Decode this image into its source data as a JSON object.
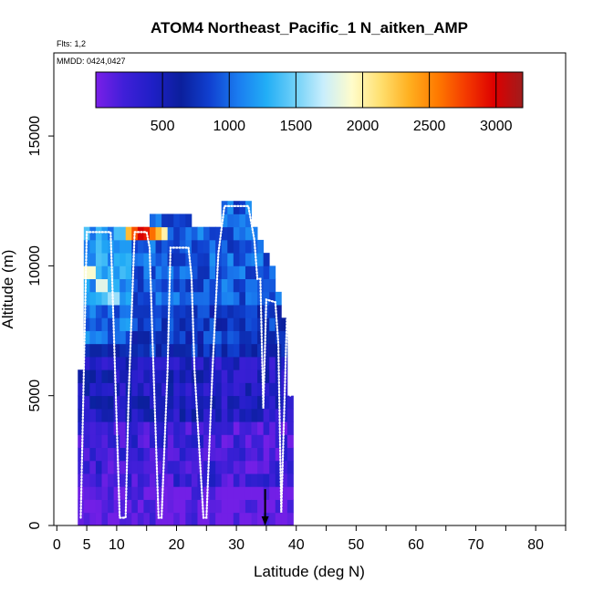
{
  "chart_data": {
    "type": "heatmap",
    "title": "ATOM4 Northeast_Pacific_1 N_aitken_AMP",
    "flights_label": "Flts: 1,2",
    "dates_label": "MMDD: 0424,0427",
    "xlabel": "Latitude (deg N)",
    "ylabel": "Altitude (m)",
    "xlim": [
      -0.5,
      85
    ],
    "ylim": [
      0,
      18200
    ],
    "x_ticks": [
      0,
      5,
      10,
      20,
      30,
      40,
      50,
      60,
      70,
      80
    ],
    "x_tick_labels": [
      "0",
      "5",
      "10",
      "20",
      "30",
      "40",
      "50",
      "60",
      "70",
      "80"
    ],
    "x_minor_ticks": [
      15,
      25,
      35,
      45,
      55,
      65,
      75,
      85
    ],
    "y_ticks": [
      0,
      5000,
      10000,
      15000
    ],
    "y_tick_labels": [
      "0",
      "5000",
      "10000",
      "15000"
    ],
    "colorbar": {
      "range": [
        0,
        3200
      ],
      "ticks": [
        500,
        1000,
        1500,
        2000,
        2500,
        3000
      ],
      "tick_labels": [
        "500",
        "1000",
        "1500",
        "2000",
        "2500",
        "3000"
      ],
      "colors": [
        "#7a1fe8",
        "#3f1fd8",
        "#1f1fc6",
        "#0b1f9c",
        "#1040d0",
        "#1a7cf0",
        "#22aef6",
        "#6fd0f8",
        "#c9eefc",
        "#fffccb",
        "#ffe070",
        "#ffb020",
        "#ff7a00",
        "#f43a00",
        "#dd0000",
        "#a01c1c"
      ]
    },
    "colored_columns": [
      {
        "lat": 4,
        "alt_max": 6000
      },
      {
        "lat": 5,
        "alt_max": 11500
      },
      {
        "lat": 6,
        "alt_max": 11500
      },
      {
        "lat": 7,
        "alt_max": 11500
      },
      {
        "lat": 8,
        "alt_max": 11500
      },
      {
        "lat": 9,
        "alt_max": 11500
      },
      {
        "lat": 10,
        "alt_max": 11500
      },
      {
        "lat": 11,
        "alt_max": 11500
      },
      {
        "lat": 12,
        "alt_max": 11500
      },
      {
        "lat": 13,
        "alt_max": 11500
      },
      {
        "lat": 14,
        "alt_max": 11500
      },
      {
        "lat": 15,
        "alt_max": 11500
      },
      {
        "lat": 16,
        "alt_max": 12000
      },
      {
        "lat": 17,
        "alt_max": 12000
      },
      {
        "lat": 18,
        "alt_max": 12000
      },
      {
        "lat": 19,
        "alt_max": 12000
      },
      {
        "lat": 20,
        "alt_max": 12000
      },
      {
        "lat": 21,
        "alt_max": 12000
      },
      {
        "lat": 22,
        "alt_max": 12000
      },
      {
        "lat": 23,
        "alt_max": 11500
      },
      {
        "lat": 24,
        "alt_max": 11500
      },
      {
        "lat": 25,
        "alt_max": 11500
      },
      {
        "lat": 26,
        "alt_max": 11500
      },
      {
        "lat": 27,
        "alt_max": 11500
      },
      {
        "lat": 28,
        "alt_max": 12500
      },
      {
        "lat": 29,
        "alt_max": 12500
      },
      {
        "lat": 30,
        "alt_max": 12500
      },
      {
        "lat": 31,
        "alt_max": 12500
      },
      {
        "lat": 32,
        "alt_max": 12500
      },
      {
        "lat": 33,
        "alt_max": 11500
      },
      {
        "lat": 34,
        "alt_max": 11000
      },
      {
        "lat": 35,
        "alt_max": 10500
      },
      {
        "lat": 36,
        "alt_max": 10000
      },
      {
        "lat": 37,
        "alt_max": 9000
      },
      {
        "lat": 38,
        "alt_max": 8000
      },
      {
        "lat": 39,
        "alt_max": 5000
      }
    ],
    "bright_cells": [
      {
        "lat": 12,
        "alt": 11250,
        "value": 2300
      },
      {
        "lat": 13,
        "alt": 11250,
        "value": 2700
      },
      {
        "lat": 14,
        "alt": 11250,
        "value": 3000
      },
      {
        "lat": 15,
        "alt": 11250,
        "value": 2900
      },
      {
        "lat": 16,
        "alt": 11250,
        "value": 2600
      },
      {
        "lat": 17,
        "alt": 11250,
        "value": 2300
      },
      {
        "lat": 18,
        "alt": 11250,
        "value": 2000
      },
      {
        "lat": 5,
        "alt": 9750,
        "value": 1900
      },
      {
        "lat": 6,
        "alt": 9750,
        "value": 1900
      },
      {
        "lat": 7,
        "alt": 9250,
        "value": 1800
      },
      {
        "lat": 8,
        "alt": 9250,
        "value": 1800
      },
      {
        "lat": 9,
        "alt": 8750,
        "value": 1600
      },
      {
        "lat": 10,
        "alt": 8750,
        "value": 1600
      }
    ],
    "flight_track": [
      [
        4,
        300
      ],
      [
        5,
        11300
      ],
      [
        9,
        11300
      ],
      [
        10.5,
        300
      ],
      [
        11.5,
        300
      ],
      [
        12,
        5000
      ],
      [
        13,
        11300
      ],
      [
        15,
        11300
      ],
      [
        15.5,
        10700
      ],
      [
        16,
        7000
      ],
      [
        17,
        300
      ],
      [
        17.5,
        300
      ],
      [
        18.5,
        6000
      ],
      [
        19,
        10700
      ],
      [
        22,
        10700
      ],
      [
        22.5,
        9600
      ],
      [
        23,
        6000
      ],
      [
        24.5,
        300
      ],
      [
        25,
        300
      ],
      [
        26,
        6000
      ],
      [
        27,
        10500
      ],
      [
        28,
        12300
      ],
      [
        32,
        12300
      ],
      [
        33,
        11000
      ],
      [
        33.5,
        9500
      ],
      [
        34,
        9500
      ],
      [
        34.5,
        4500
      ],
      [
        35,
        8700
      ],
      [
        36.5,
        8600
      ],
      [
        37,
        7000
      ],
      [
        37.5,
        500
      ],
      [
        38.5,
        8500
      ],
      [
        39,
        5000
      ]
    ],
    "marker": {
      "lat": 34.8,
      "alt": 600
    }
  }
}
